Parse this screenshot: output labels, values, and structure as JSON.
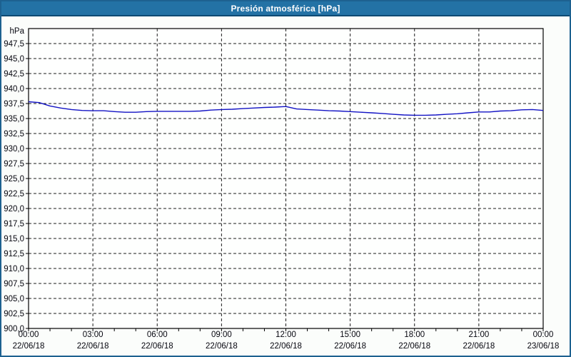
{
  "window": {
    "title": "Presión atmosférica [hPa]"
  },
  "colors": {
    "titlebar_bg": "#2372a5",
    "titlebar_text": "#ffffff",
    "outer_border": "#1d6190",
    "page_bg": "#fbfdfb",
    "plot_bg": "#fefffe",
    "frame": "#000000",
    "grid": "#1c1c1c",
    "tick_label": "#06060f",
    "line": "#1212c4"
  },
  "chart_data": {
    "type": "line",
    "title": "Presión atmosférica [hPa]",
    "unit_label": "hPa",
    "ylabel": "hPa",
    "xlabel": "",
    "ylim": [
      900,
      950
    ],
    "ytick_step": 2.5,
    "grid": "dashed",
    "legend": "none",
    "yticks": [
      {
        "value": 947.5,
        "label": "947,5"
      },
      {
        "value": 945.0,
        "label": "945,0"
      },
      {
        "value": 942.5,
        "label": "942,5"
      },
      {
        "value": 940.0,
        "label": "940,0"
      },
      {
        "value": 937.5,
        "label": "937,5"
      },
      {
        "value": 935.0,
        "label": "935,0"
      },
      {
        "value": 932.5,
        "label": "932,5"
      },
      {
        "value": 930.0,
        "label": "930,0"
      },
      {
        "value": 927.5,
        "label": "927,5"
      },
      {
        "value": 925.0,
        "label": "925,0"
      },
      {
        "value": 922.5,
        "label": "922,5"
      },
      {
        "value": 920.0,
        "label": "920,0"
      },
      {
        "value": 917.5,
        "label": "917,5"
      },
      {
        "value": 915.0,
        "label": "915,0"
      },
      {
        "value": 912.5,
        "label": "912,5"
      },
      {
        "value": 910.0,
        "label": "910,0"
      },
      {
        "value": 907.5,
        "label": "907,5"
      },
      {
        "value": 905.0,
        "label": "905,0"
      },
      {
        "value": 902.5,
        "label": "902,5"
      },
      {
        "value": 900.0,
        "label": "900,0"
      }
    ],
    "x_hours_range": [
      0,
      24
    ],
    "xticks": [
      {
        "hours": 0,
        "time": "00:00",
        "date": "22/06/18"
      },
      {
        "hours": 3,
        "time": "03:00",
        "date": "22/06/18"
      },
      {
        "hours": 6,
        "time": "06:00",
        "date": "22/06/18"
      },
      {
        "hours": 9,
        "time": "09:00",
        "date": "22/06/18"
      },
      {
        "hours": 12,
        "time": "12:00",
        "date": "22/06/18"
      },
      {
        "hours": 15,
        "time": "15:00",
        "date": "22/06/18"
      },
      {
        "hours": 18,
        "time": "18:00",
        "date": "22/06/18"
      },
      {
        "hours": 21,
        "time": "21:00",
        "date": "22/06/18"
      },
      {
        "hours": 24,
        "time": "00:00",
        "date": "23/06/18"
      }
    ],
    "minor_xtick_every_hours": 1,
    "series": [
      {
        "name": "Presión atmosférica",
        "unit": "hPa",
        "x_hours": [
          0,
          0.5,
          1,
          1.5,
          2,
          2.5,
          3,
          3.5,
          4,
          4.5,
          5,
          5.5,
          6,
          6.5,
          7,
          7.5,
          8,
          8.5,
          9,
          9.5,
          10,
          10.5,
          11,
          11.5,
          12,
          12.5,
          13,
          13.5,
          14,
          14.5,
          15,
          15.5,
          16,
          16.5,
          17,
          17.5,
          18,
          18.5,
          19,
          19.5,
          20,
          20.5,
          21,
          21.5,
          22,
          22.5,
          23,
          23.5,
          24
        ],
        "values": [
          937.8,
          937.65,
          937.1,
          936.75,
          936.5,
          936.35,
          936.3,
          936.3,
          936.15,
          936.05,
          936.05,
          936.15,
          936.2,
          936.2,
          936.2,
          936.2,
          936.25,
          936.4,
          936.5,
          936.55,
          936.65,
          936.75,
          936.85,
          936.9,
          937.0,
          936.6,
          936.5,
          936.4,
          936.3,
          936.25,
          936.15,
          936.05,
          935.95,
          935.85,
          935.7,
          935.6,
          935.55,
          935.55,
          935.6,
          935.7,
          935.8,
          935.95,
          936.1,
          936.1,
          936.25,
          936.3,
          936.45,
          936.5,
          936.35
        ]
      }
    ]
  }
}
